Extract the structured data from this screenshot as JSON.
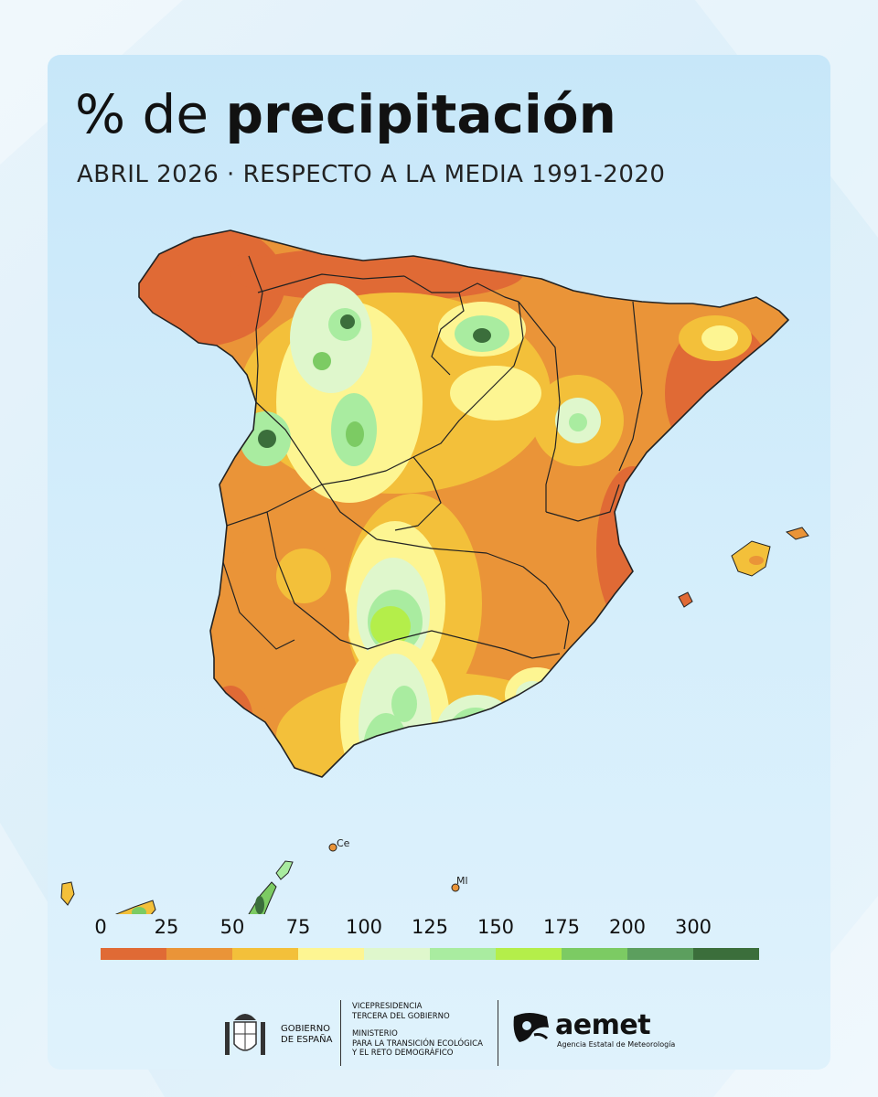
{
  "title": {
    "prefix": "% de",
    "bold": "precipitación"
  },
  "subtitle": "ABRIL 2026 · RESPECTO A LA MEDIA 1991-2020",
  "legend": {
    "labels": [
      "0",
      "25",
      "50",
      "75",
      "100",
      "125",
      "150",
      "175",
      "200",
      "300"
    ],
    "colors": [
      "#e06a35",
      "#ea9438",
      "#f3c03a",
      "#fdf592",
      "#dff7cc",
      "#a9eca0",
      "#b4ee4a",
      "#7ccb63",
      "#5c9f5e",
      "#3b6e3b"
    ]
  },
  "map": {
    "labels": {
      "ceuta": "Ce",
      "melilla": "Ml"
    },
    "colors": {
      "very_dry": "#e06a35",
      "dry": "#ea9438",
      "below": "#f3c03a",
      "normal": "#fdf592",
      "above": "#dff7cc",
      "wet": "#a9eca0",
      "very_wet": "#7ccb63",
      "extreme": "#3b6e3b"
    }
  },
  "footer": {
    "gobierno": [
      "GOBIERNO",
      "DE ESPAÑA"
    ],
    "vicepresidencia": [
      "VICEPRESIDENCIA",
      "TERCERA DEL GOBIERNO"
    ],
    "ministerio": [
      "MINISTERIO",
      "PARA LA TRANSICIÓN ECOLÓGICA",
      "Y EL RETO DEMOGRÁFICO"
    ],
    "aemet": "aemet",
    "aemet_sub": "Agencia Estatal de Meteorología"
  }
}
